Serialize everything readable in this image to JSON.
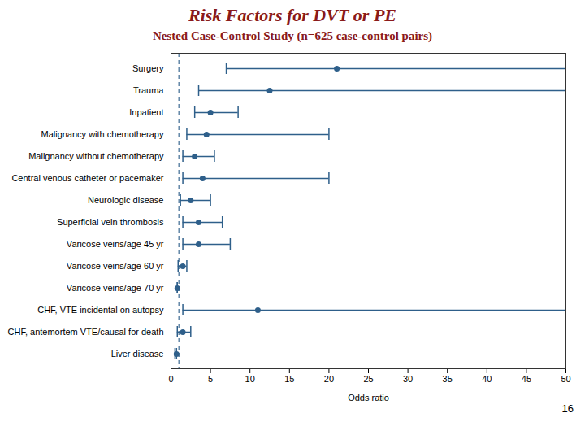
{
  "chart_data": {
    "type": "forest",
    "title": "Risk Factors for DVT or PE",
    "subtitle": "Nested Case-Control Study (n=625 case-control pairs)",
    "title_color": "#8B1A1A",
    "page_number": "16",
    "xlabel": "Odds ratio",
    "categories": [
      "Surgery",
      "Trauma",
      "Inpatient",
      "Malignancy with chemotherapy",
      "Malignancy without chemotherapy",
      "Central venous catheter or pacemaker",
      "Neurologic disease",
      "Superficial vein thrombosis",
      "Varicose veins/age 45 yr",
      "Varicose veins/age 60 yr",
      "Varicose veins/age 70 yr",
      "CHF, VTE incidental on autopsy",
      "CHF, antemortem VTE/causal for death",
      "Liver disease"
    ],
    "values": [
      21.0,
      12.5,
      5.0,
      4.5,
      3.0,
      4.0,
      2.5,
      3.5,
      3.5,
      1.5,
      0.8,
      11.0,
      1.5,
      0.7
    ],
    "ci_lower": [
      7.0,
      3.5,
      3.0,
      2.0,
      1.5,
      1.5,
      1.2,
      1.5,
      1.5,
      0.9,
      0.8,
      1.5,
      0.8,
      0.5
    ],
    "ci_upper": [
      50.0,
      50.0,
      8.5,
      20.0,
      5.5,
      20.0,
      5.0,
      6.5,
      7.5,
      2.0,
      0.8,
      50.0,
      2.5,
      0.7
    ],
    "color": "#2E5F8A",
    "reference_line": {
      "value": 1.0,
      "line_style": "dashed"
    },
    "xlim": [
      0,
      50
    ],
    "xticks": [
      0,
      5,
      10,
      15,
      20,
      25,
      30,
      35,
      40,
      45,
      50
    ],
    "grid": false
  }
}
